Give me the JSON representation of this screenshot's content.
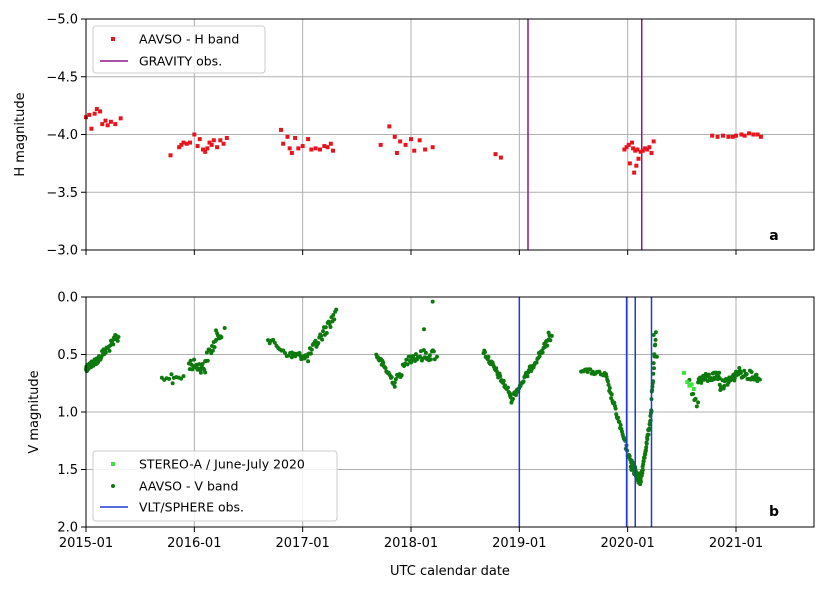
{
  "chart_data": [
    {
      "id": "a",
      "type": "scatter",
      "panel_label": "a",
      "ylabel": "H magnitude",
      "xlabel": "",
      "ylim": [
        -5.0,
        -3.0
      ],
      "y_inverted": true,
      "yticks": [
        "-5.0",
        "-4.5",
        "-4.0",
        "-3.5",
        "-3.0"
      ],
      "ytick_values": [
        -5.0,
        -4.5,
        -4.0,
        -3.5,
        -3.0
      ],
      "grid": true,
      "legend_position": "top-left",
      "series": [
        {
          "name": "AAVSO - H band",
          "kind": "points",
          "color": "#e8141d",
          "points": [
            [
              2015.0,
              -4.15
            ],
            [
              2015.03,
              -4.17
            ],
            [
              2015.05,
              -4.05
            ],
            [
              2015.08,
              -4.18
            ],
            [
              2015.1,
              -4.22
            ],
            [
              2015.13,
              -4.2
            ],
            [
              2015.15,
              -4.09
            ],
            [
              2015.18,
              -4.12
            ],
            [
              2015.2,
              -4.08
            ],
            [
              2015.23,
              -4.11
            ],
            [
              2015.27,
              -4.09
            ],
            [
              2015.32,
              -4.14
            ],
            [
              2015.78,
              -3.82
            ],
            [
              2015.86,
              -3.89
            ],
            [
              2015.88,
              -3.91
            ],
            [
              2015.9,
              -3.93
            ],
            [
              2015.93,
              -3.92
            ],
            [
              2015.96,
              -3.93
            ],
            [
              2016.0,
              -4.0
            ],
            [
              2016.03,
              -3.9
            ],
            [
              2016.05,
              -3.96
            ],
            [
              2016.08,
              -3.87
            ],
            [
              2016.1,
              -3.85
            ],
            [
              2016.12,
              -3.88
            ],
            [
              2016.14,
              -3.93
            ],
            [
              2016.16,
              -3.91
            ],
            [
              2016.18,
              -3.95
            ],
            [
              2016.21,
              -3.89
            ],
            [
              2016.24,
              -3.95
            ],
            [
              2016.27,
              -3.92
            ],
            [
              2016.3,
              -3.97
            ],
            [
              2016.8,
              -4.04
            ],
            [
              2016.82,
              -3.92
            ],
            [
              2016.86,
              -3.98
            ],
            [
              2016.88,
              -3.88
            ],
            [
              2016.9,
              -3.84
            ],
            [
              2016.93,
              -3.97
            ],
            [
              2016.96,
              -3.88
            ],
            [
              2017.0,
              -3.9
            ],
            [
              2017.05,
              -3.96
            ],
            [
              2017.08,
              -3.87
            ],
            [
              2017.12,
              -3.88
            ],
            [
              2017.16,
              -3.87
            ],
            [
              2017.2,
              -3.9
            ],
            [
              2017.23,
              -3.89
            ],
            [
              2017.26,
              -3.92
            ],
            [
              2017.28,
              -3.86
            ],
            [
              2017.72,
              -3.91
            ],
            [
              2017.8,
              -4.07
            ],
            [
              2017.85,
              -3.98
            ],
            [
              2017.87,
              -3.84
            ],
            [
              2017.9,
              -3.94
            ],
            [
              2017.95,
              -3.91
            ],
            [
              2018.0,
              -3.96
            ],
            [
              2018.03,
              -3.86
            ],
            [
              2018.08,
              -3.95
            ],
            [
              2018.13,
              -3.87
            ],
            [
              2018.2,
              -3.89
            ],
            [
              2018.78,
              -3.83
            ],
            [
              2018.83,
              -3.8
            ],
            [
              2019.97,
              -3.87
            ],
            [
              2019.99,
              -3.89
            ],
            [
              2020.01,
              -3.91
            ],
            [
              2020.02,
              -3.75
            ],
            [
              2020.04,
              -3.93
            ],
            [
              2020.05,
              -3.88
            ],
            [
              2020.06,
              -3.67
            ],
            [
              2020.07,
              -3.86
            ],
            [
              2020.08,
              -3.73
            ],
            [
              2020.09,
              -3.87
            ],
            [
              2020.1,
              -3.79
            ],
            [
              2020.12,
              -3.85
            ],
            [
              2020.14,
              -3.86
            ],
            [
              2020.16,
              -3.88
            ],
            [
              2020.18,
              -3.87
            ],
            [
              2020.2,
              -3.89
            ],
            [
              2020.22,
              -3.84
            ],
            [
              2020.24,
              -3.94
            ],
            [
              2020.78,
              -3.99
            ],
            [
              2020.83,
              -3.98
            ],
            [
              2020.88,
              -3.99
            ],
            [
              2020.93,
              -3.98
            ],
            [
              2020.97,
              -3.98
            ],
            [
              2021.0,
              -3.99
            ],
            [
              2021.05,
              -4.0
            ],
            [
              2021.08,
              -3.99
            ],
            [
              2021.12,
              -4.01
            ],
            [
              2021.16,
              -4.0
            ],
            [
              2021.2,
              -4.0
            ],
            [
              2021.23,
              -3.98
            ]
          ]
        },
        {
          "name": "GRAVITY obs.",
          "kind": "vlines",
          "color": "#8b1a8b",
          "x": [
            2019.08,
            2020.13
          ]
        }
      ]
    },
    {
      "id": "b",
      "type": "scatter",
      "panel_label": "b",
      "ylabel": "V magnitude",
      "xlabel": "UTC calendar date",
      "ylim": [
        0.0,
        2.0
      ],
      "y_inverted": true,
      "yticks": [
        "0.0",
        "0.5",
        "1.0",
        "1.5",
        "2.0"
      ],
      "ytick_values": [
        0.0,
        0.5,
        1.0,
        1.5,
        2.0
      ],
      "xlim": [
        2015.0,
        2021.72
      ],
      "xticks": [
        "2015-01",
        "2016-01",
        "2017-01",
        "2018-01",
        "2019-01",
        "2020-01",
        "2021-01"
      ],
      "xtick_values": [
        2015.0,
        2016.0,
        2017.0,
        2018.0,
        2019.0,
        2020.0,
        2021.0
      ],
      "grid": true,
      "legend_position": "bottom-left",
      "series": [
        {
          "name": "STEREO-A / June-July 2020",
          "kind": "squares",
          "color": "#3ee23e",
          "points": [
            [
              2020.52,
              0.66
            ],
            [
              2020.55,
              0.74
            ],
            [
              2020.57,
              0.77
            ],
            [
              2020.59,
              0.76
            ],
            [
              2020.61,
              0.8
            ]
          ]
        },
        {
          "name": "AAVSO - V band",
          "kind": "curve-dots",
          "color": "#0d7a0d",
          "segments": [
            {
              "x0": 2015.0,
              "x1": 2015.1,
              "y0": 0.62,
              "y1": 0.55,
              "n": 40,
              "jitter": 0.03
            },
            {
              "x0": 2015.1,
              "x1": 2015.3,
              "y0": 0.55,
              "y1": 0.35,
              "n": 30,
              "jitter": 0.04
            },
            {
              "x0": 2015.7,
              "x1": 2015.9,
              "y0": 0.7,
              "y1": 0.7,
              "n": 10,
              "jitter": 0.03
            },
            {
              "x0": 2015.95,
              "x1": 2016.1,
              "y0": 0.58,
              "y1": 0.62,
              "n": 20,
              "jitter": 0.05
            },
            {
              "x0": 2016.1,
              "x1": 2016.25,
              "y0": 0.55,
              "y1": 0.3,
              "n": 20,
              "jitter": 0.05
            },
            {
              "x0": 2016.68,
              "x1": 2016.9,
              "y0": 0.37,
              "y1": 0.52,
              "n": 15,
              "jitter": 0.03
            },
            {
              "x0": 2016.9,
              "x1": 2017.05,
              "y0": 0.5,
              "y1": 0.52,
              "n": 20,
              "jitter": 0.03
            },
            {
              "x0": 2017.05,
              "x1": 2017.3,
              "y0": 0.52,
              "y1": 0.15,
              "n": 30,
              "jitter": 0.05
            },
            {
              "x0": 2017.68,
              "x1": 2017.85,
              "y0": 0.5,
              "y1": 0.75,
              "n": 25,
              "jitter": 0.03
            },
            {
              "x0": 2017.85,
              "x1": 2018.0,
              "y0": 0.75,
              "y1": 0.5,
              "n": 15,
              "jitter": 0.04
            },
            {
              "x0": 2018.0,
              "x1": 2018.22,
              "y0": 0.52,
              "y1": 0.5,
              "n": 25,
              "jitter": 0.05
            },
            {
              "x0": 2018.67,
              "x1": 2018.92,
              "y0": 0.47,
              "y1": 0.85,
              "n": 40,
              "jitter": 0.03
            },
            {
              "x0": 2018.92,
              "x1": 2019.3,
              "y0": 0.9,
              "y1": 0.33,
              "n": 55,
              "jitter": 0.03
            },
            {
              "x0": 2019.57,
              "x1": 2019.8,
              "y0": 0.63,
              "y1": 0.68,
              "n": 20,
              "jitter": 0.02
            },
            {
              "x0": 2019.8,
              "x1": 2020.03,
              "y0": 0.7,
              "y1": 1.45,
              "n": 40,
              "jitter": 0.03
            },
            {
              "x0": 2020.03,
              "x1": 2020.12,
              "y0": 1.45,
              "y1": 1.6,
              "n": 45,
              "jitter": 0.05
            },
            {
              "x0": 2020.12,
              "x1": 2020.22,
              "y0": 1.6,
              "y1": 1.0,
              "n": 40,
              "jitter": 0.03
            },
            {
              "x0": 2020.22,
              "x1": 2020.26,
              "y0": 0.9,
              "y1": 0.35,
              "n": 15,
              "jitter": 0.05
            },
            {
              "x0": 2020.57,
              "x1": 2020.65,
              "y0": 0.75,
              "y1": 0.95,
              "n": 8,
              "jitter": 0.04
            },
            {
              "x0": 2020.65,
              "x1": 2020.85,
              "y0": 0.72,
              "y1": 0.68,
              "n": 35,
              "jitter": 0.04
            },
            {
              "x0": 2020.85,
              "x1": 2021.0,
              "y0": 0.78,
              "y1": 0.68,
              "n": 30,
              "jitter": 0.04
            },
            {
              "x0": 2021.0,
              "x1": 2021.22,
              "y0": 0.65,
              "y1": 0.7,
              "n": 30,
              "jitter": 0.04
            }
          ],
          "points": [
            [
              2015.27,
              0.33
            ],
            [
              2016.28,
              0.27
            ],
            [
              2017.31,
              0.11
            ],
            [
              2018.2,
              0.04
            ],
            [
              2018.12,
              0.28
            ],
            [
              2018.24,
              0.52
            ],
            [
              2020.24,
              0.33
            ],
            [
              2020.27,
              0.52
            ],
            [
              2019.27,
              0.31
            ],
            [
              2016.2,
              0.29
            ],
            [
              2015.8,
              0.75
            ]
          ]
        },
        {
          "name": "VLT/SPHERE obs.",
          "kind": "vlines",
          "color": "#1f3ad6",
          "x": [
            2019.0,
            2019.99,
            2020.07,
            2020.22
          ]
        }
      ]
    }
  ]
}
